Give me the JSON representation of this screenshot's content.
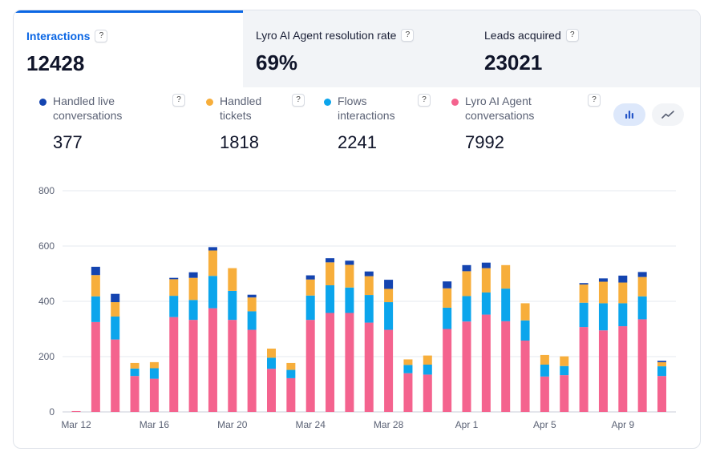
{
  "tabs": [
    {
      "label": "Interactions",
      "value": "12428"
    },
    {
      "label": "Lyro AI Agent resolution rate",
      "value": "69%"
    },
    {
      "label": "Leads acquired",
      "value": "23021"
    }
  ],
  "help_symbol": "?",
  "legend": [
    {
      "label_line1": "Handled live",
      "label_line2": "conversations",
      "value": "377",
      "color": "#1444b0"
    },
    {
      "label_line1": "Handled",
      "label_line2": "tickets",
      "value": "1818",
      "color": "#f7ae3b"
    },
    {
      "label_line1": "Flows",
      "label_line2": "interactions",
      "value": "2241",
      "color": "#0ba5ec"
    },
    {
      "label_line1": "Lyro AI Agent",
      "label_line2": "conversations",
      "value": "7992",
      "color": "#f4638e"
    }
  ],
  "view_toggle": {
    "selected": "bar",
    "options": [
      "bar-chart-icon",
      "line-chart-icon"
    ]
  },
  "chart_data": {
    "type": "bar",
    "stacked": true,
    "ylim": [
      0,
      800
    ],
    "yticks": [
      0,
      200,
      400,
      600,
      800
    ],
    "x_tick_labels": [
      {
        "label": "Mar 12",
        "index": 0
      },
      {
        "label": "Mar 16",
        "index": 4
      },
      {
        "label": "Mar 20",
        "index": 8
      },
      {
        "label": "Mar 24",
        "index": 12
      },
      {
        "label": "Mar 28",
        "index": 16
      },
      {
        "label": "Apr 1",
        "index": 20
      },
      {
        "label": "Apr 5",
        "index": 24
      },
      {
        "label": "Apr 9",
        "index": 28
      }
    ],
    "categories": [
      "Mar 12",
      "Mar 13",
      "Mar 14",
      "Mar 15",
      "Mar 16",
      "Mar 17",
      "Mar 18",
      "Mar 19",
      "Mar 20",
      "Mar 21",
      "Mar 22",
      "Mar 23",
      "Mar 24",
      "Mar 25",
      "Mar 26",
      "Mar 27",
      "Mar 28",
      "Mar 29",
      "Mar 30",
      "Mar 31",
      "Apr 1",
      "Apr 2",
      "Apr 3",
      "Apr 4",
      "Apr 5",
      "Apr 6",
      "Apr 7",
      "Apr 8",
      "Apr 9",
      "Apr 10",
      "Apr 11"
    ],
    "series": [
      {
        "name": "Lyro AI Agent conversations",
        "color": "#f4638e",
        "values": [
          3,
          325,
          262,
          130,
          120,
          343,
          333,
          375,
          333,
          297,
          156,
          122,
          333,
          358,
          358,
          323,
          297,
          140,
          135,
          300,
          327,
          352,
          328,
          258,
          128,
          133,
          307,
          295,
          310,
          335,
          130
        ]
      },
      {
        "name": "Flows interactions",
        "color": "#0ba5ec",
        "values": [
          0,
          93,
          83,
          27,
          38,
          77,
          72,
          117,
          105,
          67,
          40,
          30,
          88,
          100,
          92,
          100,
          100,
          30,
          36,
          77,
          92,
          80,
          118,
          73,
          43,
          33,
          88,
          98,
          83,
          83,
          35
        ]
      },
      {
        "name": "Handled tickets",
        "color": "#f7ae3b",
        "values": [
          0,
          77,
          52,
          20,
          22,
          60,
          80,
          92,
          82,
          50,
          33,
          25,
          58,
          83,
          82,
          68,
          48,
          20,
          33,
          70,
          90,
          88,
          85,
          62,
          35,
          35,
          66,
          78,
          75,
          70,
          15
        ]
      },
      {
        "name": "Handled live conversations",
        "color": "#1444b0",
        "values": [
          0,
          30,
          30,
          0,
          0,
          5,
          20,
          12,
          0,
          10,
          0,
          0,
          15,
          15,
          15,
          17,
          33,
          0,
          0,
          25,
          22,
          20,
          0,
          0,
          0,
          0,
          5,
          12,
          25,
          18,
          5
        ]
      }
    ]
  }
}
